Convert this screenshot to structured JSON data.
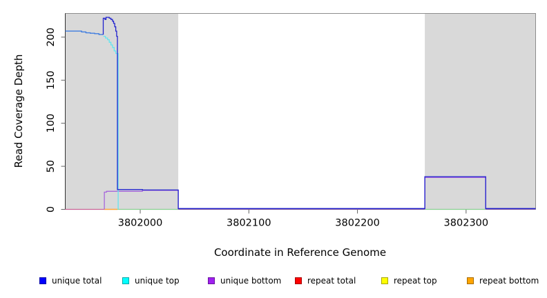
{
  "chart_data": {
    "type": "line",
    "title": "",
    "xlabel": "Coordinate in Reference Genome",
    "ylabel": "Read Coverage Depth",
    "xlim": [
      3801931,
      3802364
    ],
    "ylim": [
      0,
      227.5
    ],
    "grid": false,
    "x_ticks": [
      3802000,
      3802100,
      3802200,
      3802300
    ],
    "x_tick_labels": [
      "3802000",
      "3802100",
      "3802200",
      "3802300"
    ],
    "y_ticks": [
      0,
      50,
      100,
      150,
      200
    ],
    "y_tick_labels": [
      "0",
      "50",
      "100",
      "150",
      "200"
    ],
    "shaded_regions": [
      {
        "x0": 3801931,
        "x1": 3802035
      },
      {
        "x0": 3802262,
        "x1": 3802364
      }
    ],
    "colors": {
      "shade": "#D9D9D9",
      "frame": "#8C8C8C",
      "axis": "#303030",
      "tick": "#606060",
      "text": "#000000",
      "background": "#FFFFFF"
    },
    "legend": [
      {
        "label": "unique total",
        "color": "#0000FF"
      },
      {
        "label": "unique top",
        "color": "#00FFFF"
      },
      {
        "label": "unique bottom",
        "color": "#A020F0"
      },
      {
        "label": "repeat total",
        "color": "#FF0000"
      },
      {
        "label": "repeat top",
        "color": "#FFFF00"
      },
      {
        "label": "repeat bottom",
        "color": "#FFA500"
      }
    ],
    "legend_position": "bottom",
    "series": [
      {
        "name": "repeat-total-baseline",
        "color": "#C75F94",
        "width": 1.2,
        "points": [
          [
            3801931,
            0
          ],
          [
            3801967,
            0
          ]
        ]
      },
      {
        "name": "repeat-bottom-baseline",
        "color": "#FFA437",
        "width": 1.5,
        "points": [
          [
            3801967,
            0
          ],
          [
            3801979,
            0
          ]
        ]
      },
      {
        "name": "top-strand-baseline-left",
        "color": "#86CE8E",
        "width": 1.2,
        "points": [
          [
            3801979,
            0
          ],
          [
            3802035,
            0
          ]
        ]
      },
      {
        "name": "top-strand-baseline-right",
        "color": "#86CE8E",
        "width": 1.2,
        "points": [
          [
            3802262,
            0
          ],
          [
            3802318,
            0
          ]
        ]
      },
      {
        "name": "unique-bottom",
        "color": "#A566DC",
        "width": 1.3,
        "points": [
          [
            3801967,
            0.2
          ],
          [
            3801967,
            20
          ],
          [
            3801969,
            20
          ],
          [
            3801969,
            21
          ],
          [
            3802002,
            21
          ],
          [
            3802002,
            22
          ],
          [
            3802035,
            22
          ],
          [
            3802035,
            0.4
          ],
          [
            3802262,
            0.4
          ],
          [
            3802262,
            37
          ],
          [
            3802318,
            37
          ],
          [
            3802318,
            0.4
          ],
          [
            3802364,
            0.4
          ]
        ]
      },
      {
        "name": "unique-top",
        "color": "#63E6EF",
        "width": 1.3,
        "points": [
          [
            3801966,
            201
          ],
          [
            3801968,
            201
          ],
          [
            3801968,
            199
          ],
          [
            3801970,
            199
          ],
          [
            3801970,
            197
          ],
          [
            3801971.5,
            197
          ],
          [
            3801971.5,
            194
          ],
          [
            3801973,
            194
          ],
          [
            3801973,
            191
          ],
          [
            3801974.5,
            191
          ],
          [
            3801974.5,
            188
          ],
          [
            3801976,
            188
          ],
          [
            3801976,
            184
          ],
          [
            3801977.5,
            184
          ],
          [
            3801977.5,
            181
          ],
          [
            3801979.7,
            181
          ],
          [
            3801979.7,
            0.2
          ]
        ]
      },
      {
        "name": "unique-total-left-overlap",
        "color": "#3E7CE0",
        "width": 1.4,
        "points": [
          [
            3801931,
            207
          ],
          [
            3801946,
            207
          ],
          [
            3801946,
            206
          ],
          [
            3801950,
            206
          ],
          [
            3801950,
            205
          ],
          [
            3801954,
            205
          ],
          [
            3801954,
            204.5
          ],
          [
            3801958,
            204.5
          ],
          [
            3801958,
            204
          ],
          [
            3801962,
            204
          ],
          [
            3801962,
            203
          ],
          [
            3801966,
            203
          ]
        ]
      },
      {
        "name": "unique-total",
        "color": "#2021CE",
        "width": 1.3,
        "points": [
          [
            3801966,
            203
          ],
          [
            3801966,
            222
          ],
          [
            3801967.5,
            222
          ],
          [
            3801967.5,
            220.5
          ],
          [
            3801968.5,
            220.5
          ],
          [
            3801968.5,
            223
          ],
          [
            3801971.5,
            223
          ],
          [
            3801971.5,
            222
          ],
          [
            3801973,
            222
          ],
          [
            3801973,
            220.5
          ],
          [
            3801974.5,
            220.5
          ],
          [
            3801974.5,
            218.5
          ],
          [
            3801975.5,
            218.5
          ],
          [
            3801975.5,
            216
          ],
          [
            3801976.5,
            216
          ],
          [
            3801976.5,
            212
          ],
          [
            3801977.5,
            212
          ],
          [
            3801977.5,
            207
          ],
          [
            3801978.3,
            207
          ],
          [
            3801978.3,
            201
          ],
          [
            3801979,
            201
          ],
          [
            3801979,
            23
          ],
          [
            3802002,
            23
          ],
          [
            3802002,
            22.5
          ],
          [
            3802035,
            22.5
          ],
          [
            3802035,
            1
          ],
          [
            3802262,
            1
          ],
          [
            3802262,
            38
          ],
          [
            3802318,
            38
          ],
          [
            3802318,
            1
          ],
          [
            3802364,
            1
          ]
        ]
      }
    ]
  }
}
